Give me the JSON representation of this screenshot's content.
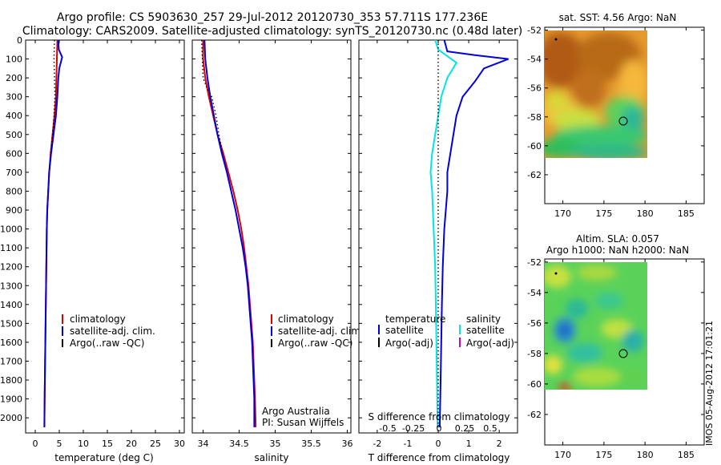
{
  "title": {
    "line1": "Argo profile: CS 5903630_257 29-Jul-2012 20120730_353 57.711S 177.236E",
    "line2": "Climatology: CARS2009. Satellite-adjusted climatology: synTS_20120730.nc (0.48d later)"
  },
  "colors": {
    "climatology": "#dd0000",
    "satellite": "#0000dd",
    "argo": "#000000",
    "s_satellite": "#00e5e5",
    "s_argo": "#cc00cc"
  },
  "chart_data": [
    {
      "type": "line",
      "xlabel": "temperature (deg C)",
      "ylabel": "",
      "xlim": [
        -2,
        31
      ],
      "ylim": [
        2080,
        0
      ],
      "xticks": [
        0,
        5,
        10,
        15,
        20,
        25,
        30
      ],
      "yticks": [
        0,
        100,
        200,
        300,
        400,
        500,
        600,
        700,
        800,
        900,
        1000,
        1100,
        1200,
        1300,
        1400,
        1500,
        1600,
        1700,
        1800,
        1900,
        2000
      ],
      "legend": [
        "climatology",
        "satellite-adj. clim.",
        "Argo(..raw -QC)"
      ],
      "legend_position": "center",
      "series": [
        {
          "name": "climatology",
          "style": "line",
          "color": "#dd0000",
          "points": [
            [
              4.6,
              0
            ],
            [
              4.5,
              100
            ],
            [
              4.4,
              200
            ],
            [
              4.3,
              300
            ],
            [
              4.0,
              400
            ],
            [
              3.6,
              500
            ],
            [
              3.2,
              600
            ],
            [
              2.9,
              700
            ],
            [
              2.7,
              800
            ],
            [
              2.5,
              900
            ],
            [
              2.4,
              1000
            ],
            [
              2.35,
              1100
            ],
            [
              2.3,
              1200
            ],
            [
              2.25,
              1300
            ],
            [
              2.2,
              1400
            ],
            [
              2.15,
              1500
            ],
            [
              2.1,
              1600
            ],
            [
              2.05,
              1700
            ],
            [
              2.0,
              1800
            ],
            [
              1.95,
              1900
            ],
            [
              1.9,
              2050
            ]
          ]
        },
        {
          "name": "satellite-adj. clim.",
          "style": "line",
          "color": "#0000dd",
          "points": [
            [
              4.8,
              0
            ],
            [
              4.9,
              50
            ],
            [
              5.6,
              90
            ],
            [
              5.0,
              150
            ],
            [
              4.8,
              200
            ],
            [
              4.6,
              300
            ],
            [
              4.3,
              400
            ],
            [
              3.8,
              500
            ],
            [
              3.3,
              600
            ],
            [
              2.9,
              700
            ],
            [
              2.7,
              800
            ],
            [
              2.5,
              900
            ],
            [
              2.4,
              1000
            ],
            [
              2.35,
              1100
            ],
            [
              2.3,
              1200
            ],
            [
              2.25,
              1300
            ],
            [
              2.2,
              1400
            ],
            [
              2.15,
              1500
            ],
            [
              2.1,
              1600
            ],
            [
              2.05,
              1700
            ],
            [
              2.0,
              1800
            ],
            [
              1.95,
              1900
            ],
            [
              1.9,
              2050
            ]
          ]
        },
        {
          "name": "Argo(..raw -QC)",
          "style": "dotted",
          "color": "#000000",
          "points": [
            [
              4.0,
              0
            ],
            [
              3.9,
              100
            ],
            [
              4.0,
              200
            ],
            [
              4.1,
              300
            ],
            [
              3.9,
              400
            ],
            [
              3.6,
              500
            ],
            [
              3.2,
              600
            ]
          ]
        }
      ]
    },
    {
      "type": "line",
      "xlabel": "salinity",
      "xlim": [
        33.85,
        36.05
      ],
      "ylim": [
        2080,
        0
      ],
      "xticks": [
        34,
        34.5,
        35,
        35.5,
        36
      ],
      "legend": [
        "climatology",
        "satellite-adj. clim.",
        "Argo(..raw -QC)"
      ],
      "legend_position": "center-right",
      "annotation": [
        "Argo Australia",
        "PI: Susan Wijffels"
      ],
      "series": [
        {
          "name": "climatology",
          "style": "line",
          "color": "#dd0000",
          "points": [
            [
              34.0,
              0
            ],
            [
              34.0,
              100
            ],
            [
              34.03,
              200
            ],
            [
              34.08,
              300
            ],
            [
              34.14,
              400
            ],
            [
              34.2,
              500
            ],
            [
              34.28,
              600
            ],
            [
              34.35,
              700
            ],
            [
              34.42,
              800
            ],
            [
              34.48,
              900
            ],
            [
              34.53,
              1000
            ],
            [
              34.57,
              1100
            ],
            [
              34.6,
              1200
            ],
            [
              34.63,
              1300
            ],
            [
              34.65,
              1400
            ],
            [
              34.67,
              1500
            ],
            [
              34.69,
              1600
            ],
            [
              34.7,
              1700
            ],
            [
              34.71,
              1800
            ],
            [
              34.72,
              1900
            ],
            [
              34.73,
              2050
            ]
          ]
        },
        {
          "name": "satellite-adj. clim.",
          "style": "line",
          "color": "#0000dd",
          "points": [
            [
              34.02,
              0
            ],
            [
              34.03,
              100
            ],
            [
              34.06,
              200
            ],
            [
              34.1,
              300
            ],
            [
              34.15,
              400
            ],
            [
              34.2,
              500
            ],
            [
              34.26,
              600
            ],
            [
              34.33,
              700
            ],
            [
              34.39,
              800
            ],
            [
              34.45,
              900
            ],
            [
              34.5,
              1000
            ],
            [
              34.55,
              1100
            ],
            [
              34.59,
              1200
            ],
            [
              34.62,
              1300
            ],
            [
              34.64,
              1400
            ],
            [
              34.66,
              1500
            ],
            [
              34.68,
              1600
            ],
            [
              34.69,
              1700
            ],
            [
              34.7,
              1800
            ],
            [
              34.71,
              1900
            ],
            [
              34.71,
              2050
            ]
          ]
        },
        {
          "name": "Argo(..raw -QC)",
          "style": "dotted",
          "color": "#000000",
          "points": [
            [
              33.98,
              0
            ],
            [
              33.99,
              100
            ],
            [
              34.0,
              200
            ],
            [
              34.05,
              250
            ],
            [
              34.12,
              300
            ],
            [
              34.18,
              400
            ],
            [
              34.22,
              500
            ],
            [
              34.27,
              600
            ]
          ]
        }
      ]
    },
    {
      "type": "line",
      "xlabel": "T difference from climatology",
      "xlabel_top": "S difference from climatology",
      "xlim": [
        -2.6,
        2.6
      ],
      "ylim": [
        2080,
        0
      ],
      "xticks": [
        -2,
        -1,
        0,
        1,
        2
      ],
      "xticks_top": [
        "-0.5",
        "-0.25",
        "0",
        "0.25",
        "0.5"
      ],
      "legend_columns": [
        {
          "heading": "temperature",
          "items": [
            {
              "label": "satellite",
              "color": "#0000dd"
            },
            {
              "label": "Argo(-adj)",
              "color": "#000000"
            }
          ]
        },
        {
          "heading": "salinity",
          "items": [
            {
              "label": "satellite",
              "color": "#00e5e5"
            },
            {
              "label": "Argo(-adj)",
              "color": "#cc00cc"
            }
          ]
        }
      ],
      "series": [
        {
          "name": "temperature satellite",
          "style": "line",
          "color": "#0000dd",
          "points": [
            [
              0.2,
              0
            ],
            [
              0.3,
              60
            ],
            [
              1.2,
              80
            ],
            [
              2.3,
              100
            ],
            [
              1.5,
              150
            ],
            [
              1.2,
              220
            ],
            [
              0.8,
              300
            ],
            [
              0.6,
              400
            ],
            [
              0.5,
              500
            ],
            [
              0.4,
              600
            ],
            [
              0.3,
              700
            ],
            [
              0.3,
              800
            ],
            [
              0.25,
              900
            ],
            [
              0.2,
              1000
            ],
            [
              0.15,
              1200
            ],
            [
              0.12,
              1400
            ],
            [
              0.1,
              1600
            ],
            [
              0.08,
              1800
            ],
            [
              0.05,
              2050
            ]
          ]
        },
        {
          "name": "salinity satellite",
          "style": "line",
          "color": "#00e5e5",
          "points": [
            [
              -0.1,
              0
            ],
            [
              0.0,
              50
            ],
            [
              0.6,
              120
            ],
            [
              0.3,
              200
            ],
            [
              0.1,
              300
            ],
            [
              0.0,
              400
            ],
            [
              -0.1,
              500
            ],
            [
              -0.2,
              600
            ],
            [
              -0.25,
              700
            ],
            [
              -0.2,
              800
            ],
            [
              -0.15,
              1000
            ],
            [
              -0.1,
              1200
            ],
            [
              -0.08,
              1400
            ],
            [
              -0.05,
              1700
            ],
            [
              -0.02,
              2050
            ]
          ]
        },
        {
          "name": "zero",
          "style": "dotted",
          "color": "#000000",
          "points": [
            [
              0,
              0
            ],
            [
              0,
              2050
            ]
          ]
        }
      ]
    },
    {
      "type": "heatmap",
      "title": "sat. SST: 4.56  Argo: NaN",
      "xlim": [
        167.8,
        187.2
      ],
      "ylim": [
        -64,
        -51.8
      ],
      "xticks": [
        170,
        175,
        180,
        185
      ],
      "yticks": [
        -52,
        -54,
        -56,
        -58,
        -60,
        -62
      ],
      "data_extent": [
        167.8,
        180,
        -60,
        -51.8
      ],
      "profile_marker": [
        177.236,
        -57.711
      ]
    },
    {
      "type": "heatmap",
      "title_line1": "Altim. SLA: 0.057",
      "title_line2": "Argo h1000: NaN h2000: NaN",
      "xlim": [
        167.8,
        187.2
      ],
      "ylim": [
        -64,
        -51.8
      ],
      "xticks": [
        170,
        175,
        180,
        185
      ],
      "yticks": [
        -52,
        -54,
        -56,
        -58,
        -60,
        -62
      ],
      "data_extent": [
        167.8,
        180,
        -60,
        -51.8
      ],
      "profile_marker": [
        177.236,
        -57.711
      ]
    }
  ],
  "footer_stamp": "IMOS 05-Aug-2012 17:01:21"
}
